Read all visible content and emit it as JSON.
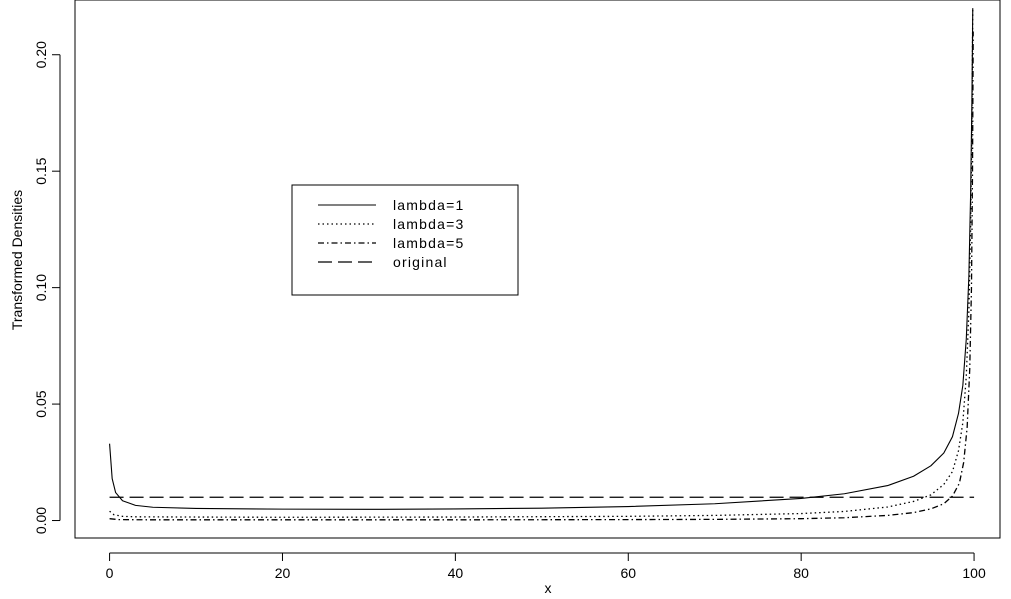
{
  "chart_data": {
    "type": "line",
    "title": "",
    "xlabel": "x",
    "ylabel": "Transformed Densities",
    "xlim": [
      -4,
      103
    ],
    "ylim": [
      -0.0075,
      0.2235
    ],
    "x_ticks": [
      0,
      20,
      40,
      60,
      80,
      100
    ],
    "x_tick_labels": [
      "0",
      "20",
      "40",
      "60",
      "80",
      "100"
    ],
    "y_ticks": [
      0.0,
      0.05,
      0.1,
      0.15,
      0.2
    ],
    "y_tick_labels": [
      "0.00",
      "0.05",
      "0.10",
      "0.15",
      "0.20"
    ],
    "grid": false,
    "legend_position": "center-left",
    "series": [
      {
        "name": "lambda=1",
        "line_style": "solid",
        "color": "#000000",
        "points": [
          [
            0,
            0.033
          ],
          [
            0.3,
            0.018
          ],
          [
            0.7,
            0.012
          ],
          [
            1.5,
            0.0085
          ],
          [
            3,
            0.0065
          ],
          [
            5,
            0.0057
          ],
          [
            10,
            0.0052
          ],
          [
            20,
            0.0049
          ],
          [
            30,
            0.0048
          ],
          [
            40,
            0.005
          ],
          [
            50,
            0.0053
          ],
          [
            60,
            0.006
          ],
          [
            70,
            0.0072
          ],
          [
            80,
            0.0095
          ],
          [
            85,
            0.0115
          ],
          [
            90,
            0.015
          ],
          [
            93,
            0.019
          ],
          [
            95,
            0.0235
          ],
          [
            96.5,
            0.029
          ],
          [
            97.5,
            0.036
          ],
          [
            98.2,
            0.046
          ],
          [
            98.7,
            0.058
          ],
          [
            99.1,
            0.078
          ],
          [
            99.4,
            0.105
          ],
          [
            99.6,
            0.14
          ],
          [
            99.75,
            0.18
          ],
          [
            99.85,
            0.22
          ]
        ]
      },
      {
        "name": "lambda=3",
        "line_style": "dotted",
        "color": "#000000",
        "points": [
          [
            0,
            0.004
          ],
          [
            0.5,
            0.0025
          ],
          [
            1.5,
            0.0018
          ],
          [
            3,
            0.0016
          ],
          [
            10,
            0.0015
          ],
          [
            20,
            0.0014
          ],
          [
            40,
            0.0015
          ],
          [
            60,
            0.0018
          ],
          [
            70,
            0.0022
          ],
          [
            80,
            0.003
          ],
          [
            85,
            0.0039
          ],
          [
            90,
            0.0058
          ],
          [
            93,
            0.0082
          ],
          [
            95,
            0.011
          ],
          [
            96.5,
            0.0155
          ],
          [
            97.5,
            0.021
          ],
          [
            98.2,
            0.03
          ],
          [
            98.7,
            0.042
          ],
          [
            99.1,
            0.062
          ],
          [
            99.4,
            0.09
          ],
          [
            99.6,
            0.125
          ],
          [
            99.75,
            0.17
          ],
          [
            99.85,
            0.22
          ]
        ]
      },
      {
        "name": "lambda=5",
        "line_style": "dashdot",
        "color": "#000000",
        "points": [
          [
            0,
            0.0008
          ],
          [
            1,
            0.0004
          ],
          [
            5,
            0.0003
          ],
          [
            20,
            0.0003
          ],
          [
            40,
            0.0003
          ],
          [
            60,
            0.0004
          ],
          [
            70,
            0.0005
          ],
          [
            80,
            0.0008
          ],
          [
            85,
            0.0012
          ],
          [
            90,
            0.0022
          ],
          [
            93,
            0.0034
          ],
          [
            95,
            0.005
          ],
          [
            96.5,
            0.0072
          ],
          [
            97.5,
            0.0105
          ],
          [
            98.3,
            0.016
          ],
          [
            98.8,
            0.025
          ],
          [
            99.2,
            0.04
          ],
          [
            99.5,
            0.065
          ],
          [
            99.7,
            0.1
          ],
          [
            99.82,
            0.15
          ],
          [
            99.9,
            0.21
          ]
        ]
      },
      {
        "name": "original",
        "line_style": "dashed",
        "color": "#000000",
        "points": [
          [
            0,
            0.01
          ],
          [
            100,
            0.01
          ]
        ]
      }
    ]
  }
}
